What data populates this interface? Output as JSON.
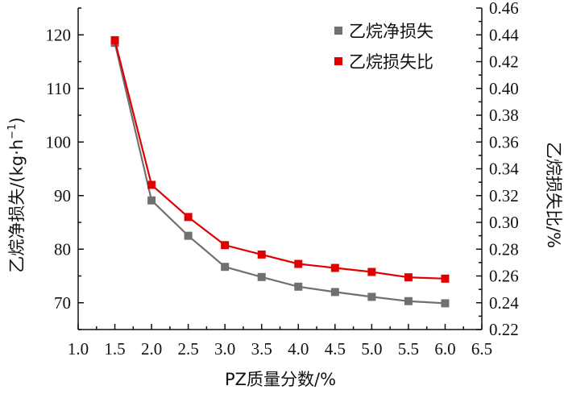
{
  "chart_data": {
    "type": "line",
    "x": [
      1.5,
      2.0,
      2.5,
      3.0,
      3.5,
      4.0,
      4.5,
      5.0,
      5.5,
      6.0
    ],
    "series": [
      {
        "name": "乙烷净损失",
        "axis": "left",
        "color": "#707070",
        "values": [
          118.5,
          89.1,
          82.5,
          76.7,
          74.8,
          73.0,
          72.0,
          71.1,
          70.3,
          69.9
        ]
      },
      {
        "name": "乙烷损失比",
        "axis": "right",
        "color": "#e00000",
        "values": [
          0.436,
          0.328,
          0.304,
          0.283,
          0.276,
          0.269,
          0.266,
          0.263,
          0.259,
          0.258
        ]
      }
    ],
    "xlabel": "PZ质量分数/%",
    "ylabel_left": "乙烷净损失/(kg·h",
    "ylabel_left_sup": "−1",
    "ylabel_left_tail": ")",
    "ylabel_right": "乙烷损失比/%",
    "xlim": [
      1.0,
      6.5
    ],
    "ylim_left": [
      65,
      125
    ],
    "ylim_right": [
      0.22,
      0.46
    ],
    "x_ticks": [
      "1.0",
      "1.5",
      "2.0",
      "2.5",
      "3.0",
      "3.5",
      "4.0",
      "4.5",
      "5.0",
      "5.5",
      "6.0",
      "6.5"
    ],
    "y_left_ticks": [
      "70",
      "80",
      "90",
      "100",
      "110",
      "120"
    ],
    "y_right_ticks": [
      "0.22",
      "0.24",
      "0.26",
      "0.28",
      "0.30",
      "0.32",
      "0.34",
      "0.36",
      "0.38",
      "0.40",
      "0.42",
      "0.44",
      "0.46"
    ],
    "legend_position": "top-right",
    "grid": false
  }
}
